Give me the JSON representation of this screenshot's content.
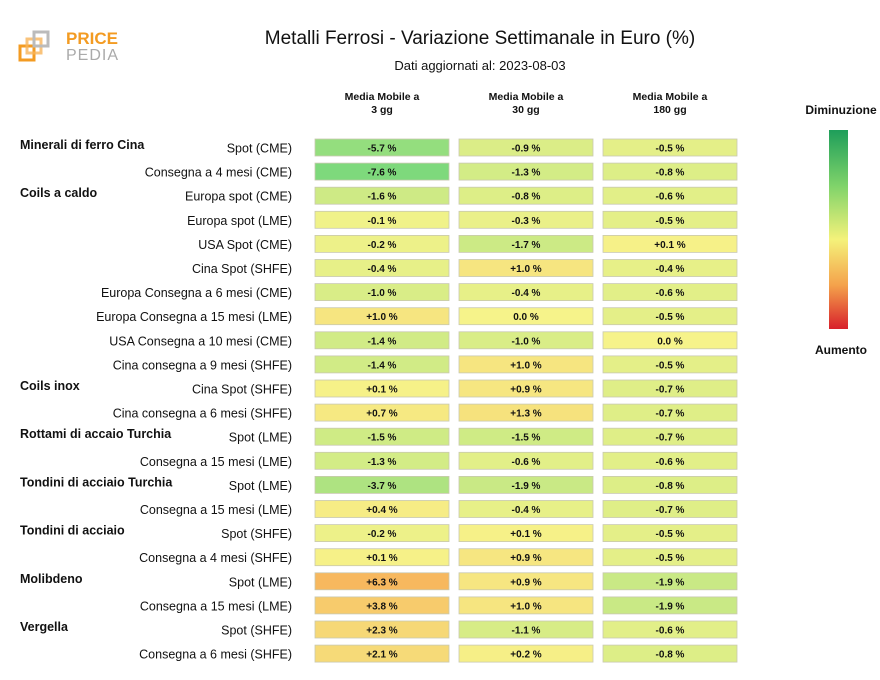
{
  "header": {
    "logo_top": "PRICE",
    "logo_bottom": "PEDIA",
    "title": "Metalli Ferrosi - Variazione Settimanale in Euro (%)",
    "subtitle": "Dati aggiornati al: 2023-08-03"
  },
  "legend": {
    "top_label": "Diminuzione",
    "bottom_label": "Aumento",
    "colors": [
      "#1e9e5a",
      "#7fd36a",
      "#f4f27a",
      "#f4a24b",
      "#d8202b"
    ]
  },
  "columns": [
    {
      "line1": "Media Mobile a",
      "line2": "3 gg"
    },
    {
      "line1": "Media Mobile a",
      "line2": "30 gg"
    },
    {
      "line1": "Media Mobile a",
      "line2": "180 gg"
    }
  ],
  "chart_data": {
    "type": "table",
    "title": "Metalli Ferrosi - Variazione Settimanale in Euro (%)",
    "column_labels": [
      "Media Mobile a 3 gg",
      "Media Mobile a 30 gg",
      "Media Mobile a 180 gg"
    ],
    "rows": [
      {
        "group": "Minerali di ferro Cina",
        "label": "Spot (CME)",
        "values": [
          "-5.7 %",
          "-0.9 %",
          "-0.5 %"
        ]
      },
      {
        "group": "",
        "label": "Consegna a 4 mesi (CME)",
        "values": [
          "-7.6 %",
          "-1.3 %",
          "-0.8 %"
        ]
      },
      {
        "group": "Coils a caldo",
        "label": "Europa spot (CME)",
        "values": [
          "-1.6 %",
          "-0.8 %",
          "-0.6 %"
        ]
      },
      {
        "group": "",
        "label": "Europa spot (LME)",
        "values": [
          "-0.1 %",
          "-0.3 %",
          "-0.5 %"
        ]
      },
      {
        "group": "",
        "label": "USA Spot (CME)",
        "values": [
          "-0.2 %",
          "-1.7 %",
          "+0.1 %"
        ]
      },
      {
        "group": "",
        "label": "Cina Spot (SHFE)",
        "values": [
          "-0.4 %",
          "+1.0 %",
          "-0.4 %"
        ]
      },
      {
        "group": "",
        "label": "Europa Consegna a 6 mesi (CME)",
        "values": [
          "-1.0 %",
          "-0.4 %",
          "-0.6 %"
        ]
      },
      {
        "group": "",
        "label": "Europa Consegna a 15 mesi (LME)",
        "values": [
          "+1.0 %",
          "0.0 %",
          "-0.5 %"
        ]
      },
      {
        "group": "",
        "label": "USA Consegna a 10 mesi (CME)",
        "values": [
          "-1.4 %",
          "-1.0 %",
          "0.0 %"
        ]
      },
      {
        "group": "",
        "label": "Cina consegna a 9 mesi (SHFE)",
        "values": [
          "-1.4 %",
          "+1.0 %",
          "-0.5 %"
        ]
      },
      {
        "group": "Coils inox",
        "label": "Cina Spot (SHFE)",
        "values": [
          "+0.1 %",
          "+0.9 %",
          "-0.7 %"
        ]
      },
      {
        "group": "",
        "label": "Cina consegna a 6 mesi (SHFE)",
        "values": [
          "+0.7 %",
          "+1.3 %",
          "-0.7 %"
        ]
      },
      {
        "group": "Rottami di accaio Turchia",
        "label": "Spot (LME)",
        "values": [
          "-1.5 %",
          "-1.5 %",
          "-0.7 %"
        ]
      },
      {
        "group": "",
        "label": "Consegna a 15 mesi (LME)",
        "values": [
          "-1.3 %",
          "-0.6 %",
          "-0.6 %"
        ]
      },
      {
        "group": "Tondini di acciaio Turchia",
        "label": "Spot (LME)",
        "values": [
          "-3.7 %",
          "-1.9 %",
          "-0.8 %"
        ]
      },
      {
        "group": "",
        "label": "Consegna a 15 mesi (LME)",
        "values": [
          "+0.4 %",
          "-0.4 %",
          "-0.7 %"
        ]
      },
      {
        "group": "Tondini di acciaio",
        "label": "Spot (SHFE)",
        "values": [
          "-0.2 %",
          "+0.1 %",
          "-0.5 %"
        ]
      },
      {
        "group": "",
        "label": "Consegna a 4 mesi (SHFE)",
        "values": [
          "+0.1 %",
          "+0.9 %",
          "-0.5 %"
        ]
      },
      {
        "group": "Molibdeno",
        "label": "Spot (LME)",
        "values": [
          "+6.3 %",
          "+0.9 %",
          "-1.9 %"
        ]
      },
      {
        "group": "",
        "label": "Consegna a 15 mesi (LME)",
        "values": [
          "+3.8 %",
          "+1.0 %",
          "-1.9 %"
        ]
      },
      {
        "group": "Vergella",
        "label": "Spot (SHFE)",
        "values": [
          "+2.3 %",
          "-1.1 %",
          "-0.6 %"
        ]
      },
      {
        "group": "",
        "label": "Consegna a 6 mesi (SHFE)",
        "values": [
          "+2.1 %",
          "+0.2 %",
          "-0.8 %"
        ]
      }
    ]
  }
}
